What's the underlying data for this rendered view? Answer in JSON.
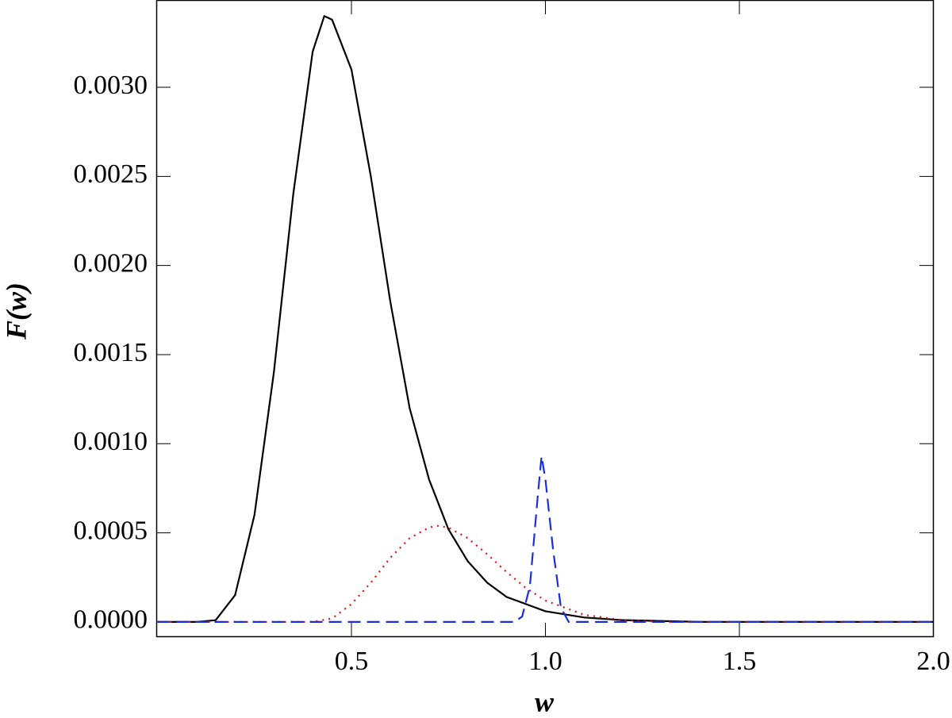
{
  "chart_data": {
    "type": "line",
    "xlabel": "w",
    "ylabel": "F(w)",
    "xlim": [
      0,
      2.0
    ],
    "ylim": [
      -8.5e-05,
      0.00349
    ],
    "xticks": [
      0.5,
      {
        "value": 1.0,
        "label": "1.0"
      },
      1.5,
      {
        "value": 2.0,
        "label": "2.0"
      }
    ],
    "yticks": [
      {
        "value": 0,
        "label": "0.0000"
      },
      {
        "value": 0.0005,
        "label": "0.0005"
      },
      {
        "value": 0.001,
        "label": "0.0010"
      },
      {
        "value": 0.0015,
        "label": "0.0015"
      },
      {
        "value": 0.002,
        "label": "0.0020"
      },
      {
        "value": 0.0025,
        "label": "0.0025"
      },
      {
        "value": 0.003,
        "label": "0.0030"
      }
    ],
    "series": [
      {
        "color": "#000000",
        "dash": "solid",
        "x": [
          0,
          0.1,
          0.15,
          0.2,
          0.25,
          0.3,
          0.35,
          0.4,
          0.43,
          0.45,
          0.5,
          0.55,
          0.6,
          0.65,
          0.7,
          0.75,
          0.8,
          0.85,
          0.9,
          1.0,
          1.1,
          1.2,
          1.4,
          2.0
        ],
        "values": [
          0,
          0,
          1e-05,
          0.00015,
          0.0006,
          0.0014,
          0.0024,
          0.0032,
          0.0034,
          0.00338,
          0.0031,
          0.0025,
          0.0018,
          0.0012,
          0.0008,
          0.00052,
          0.00034,
          0.00022,
          0.00014,
          6e-05,
          2.5e-05,
          1e-05,
          0,
          0
        ]
      },
      {
        "color": "#e01010",
        "dash": "dotted",
        "x": [
          0,
          0.4,
          0.45,
          0.5,
          0.55,
          0.6,
          0.65,
          0.7,
          0.72,
          0.75,
          0.8,
          0.85,
          0.9,
          0.95,
          1.0,
          1.1,
          1.2,
          1.3,
          2.0
        ],
        "values": [
          0,
          0,
          2e-05,
          0.0001,
          0.00022,
          0.00036,
          0.00047,
          0.00053,
          0.00054,
          0.00053,
          0.00047,
          0.00038,
          0.00028,
          0.00019,
          0.00012,
          4e-05,
          1e-05,
          0,
          0
        ]
      },
      {
        "color": "#1a2ee0",
        "dash": "dashed",
        "x": [
          0,
          0.92,
          0.94,
          0.96,
          0.98,
          0.99,
          1.0,
          1.02,
          1.04,
          1.06,
          2.0
        ],
        "values": [
          0,
          0,
          3e-05,
          0.0002,
          0.0007,
          0.00093,
          0.0008,
          0.0004,
          8e-05,
          0,
          0
        ]
      }
    ]
  }
}
